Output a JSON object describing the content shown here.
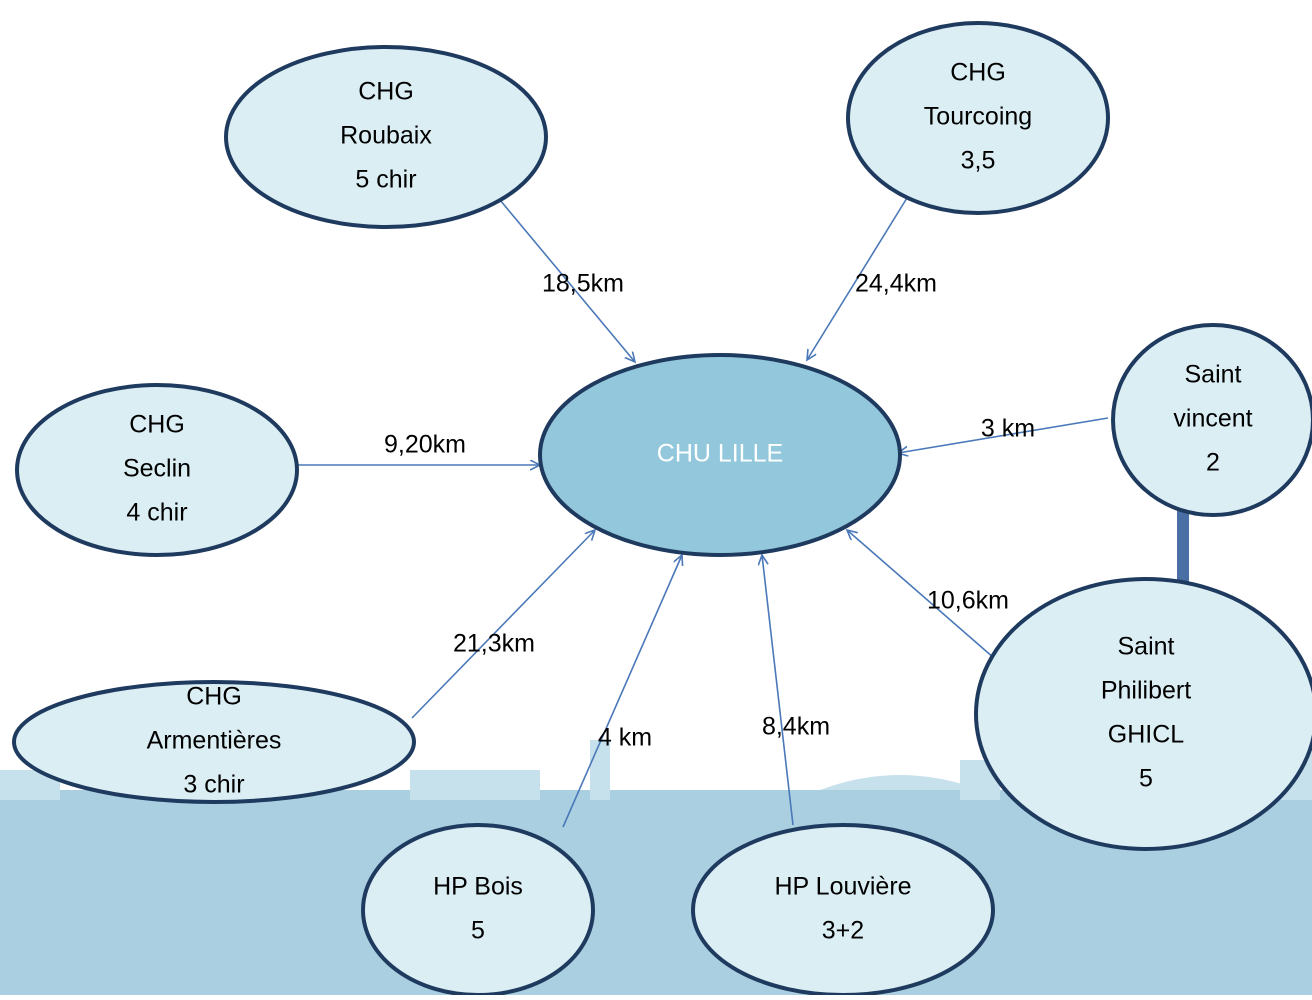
{
  "nodes": [
    {
      "lines": [
        "CHU LILLE"
      ]
    },
    {
      "lines": [
        "CHG",
        "Roubaix",
        "5 chir"
      ]
    },
    {
      "lines": [
        "CHG",
        "Tourcoing",
        "3,5"
      ]
    },
    {
      "lines": [
        "CHG",
        "Seclin",
        "4 chir"
      ]
    },
    {
      "lines": [
        "Saint",
        "vincent",
        "2"
      ]
    },
    {
      "lines": [
        "CHG",
        "Armentières",
        "3 chir"
      ]
    },
    {
      "lines": [
        "Saint",
        "Philibert",
        "GHICL",
        "5"
      ]
    },
    {
      "lines": [
        "HP Bois",
        "5"
      ]
    },
    {
      "lines": [
        "HP Louvière",
        "3+2"
      ]
    }
  ],
  "edges": [
    {
      "label": "18,5km"
    },
    {
      "label": "24,4km"
    },
    {
      "label": "9,20km"
    },
    {
      "label": "3 km"
    },
    {
      "label": "21,3km"
    },
    {
      "label": "4 km"
    },
    {
      "label": "8,4km"
    },
    {
      "label": "10,6km"
    }
  ]
}
